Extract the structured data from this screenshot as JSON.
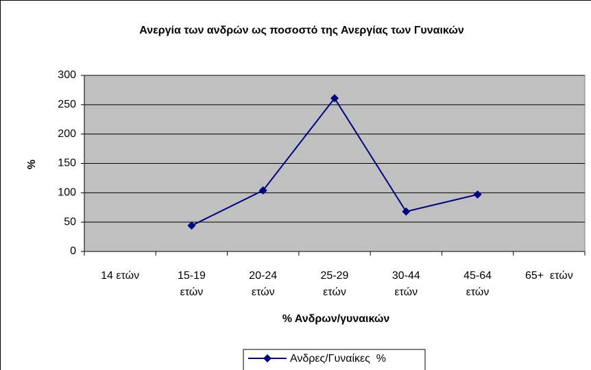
{
  "chart_data": {
    "type": "line",
    "title": "Ανεργία των ανδρών ως ποσοστό της Ανεργίας των Γυναικών",
    "x_label": "% Ανδρων/γυναικών",
    "y_label": "%",
    "categories": [
      "14 ετών",
      "15-19\nετών",
      "20-24\nετών",
      "25-29\nετών",
      "30-44\nετών",
      "45-64\nετών",
      "65+  ετών"
    ],
    "series": [
      {
        "name": "Ανδρες/Γυναίκες  %",
        "color": "#000080",
        "values": [
          null,
          44,
          104,
          261,
          68,
          97,
          null
        ]
      }
    ],
    "ylim": [
      0,
      300
    ],
    "yticks": [
      0,
      50,
      100,
      150,
      200,
      250,
      300
    ],
    "grid": true,
    "plot_background": "#c0c0c0",
    "legend": "bottom"
  }
}
